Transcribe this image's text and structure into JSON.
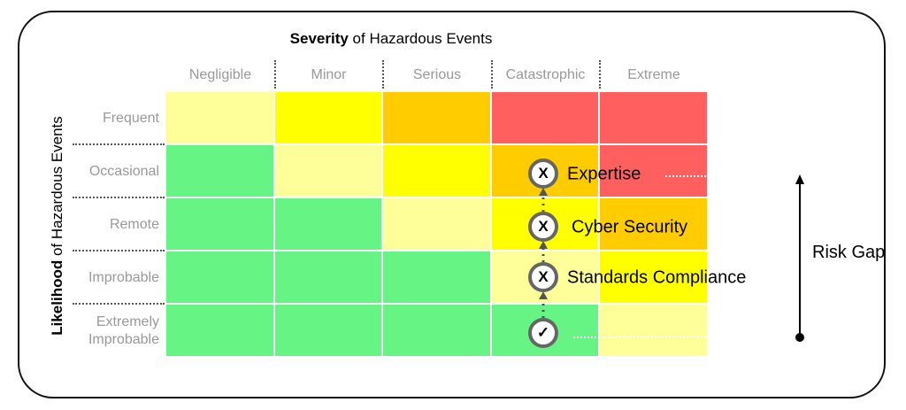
{
  "title": {
    "bold": "Severity",
    "rest": " of Hazardous Events"
  },
  "y_title": {
    "bold": "Likelihood",
    "rest": " of Hazardous Events"
  },
  "columns": [
    "Negligible",
    "Minor",
    "Serious",
    "Catastrophic",
    "Extreme"
  ],
  "rows": [
    "Frequent",
    "Occasional",
    "Remote",
    "Improbable",
    "Extremely Improbable"
  ],
  "colors": {
    "green": "#66F584",
    "light_yellow": "#FFFF99",
    "yellow": "#FFFF00",
    "orange": "#FFCC00",
    "red": "#FF5F5F"
  },
  "matrix": [
    [
      "light_yellow",
      "yellow",
      "orange",
      "red",
      "red"
    ],
    [
      "green",
      "light_yellow",
      "yellow",
      "orange",
      "red"
    ],
    [
      "green",
      "green",
      "light_yellow",
      "yellow",
      "orange"
    ],
    [
      "green",
      "green",
      "green",
      "light_yellow",
      "yellow"
    ],
    [
      "green",
      "green",
      "green",
      "green",
      "light_yellow"
    ]
  ],
  "markers": [
    {
      "symbol": "X",
      "label": "Expertise",
      "row": "Occasional"
    },
    {
      "symbol": "X",
      "label": "Cyber Security",
      "row": "Remote"
    },
    {
      "symbol": "X",
      "label": "Standards Compliance",
      "row": "Improbable"
    },
    {
      "symbol": "✓",
      "label": "",
      "row": "Extremely Improbable"
    }
  ],
  "risk_gap": "Risk Gap"
}
